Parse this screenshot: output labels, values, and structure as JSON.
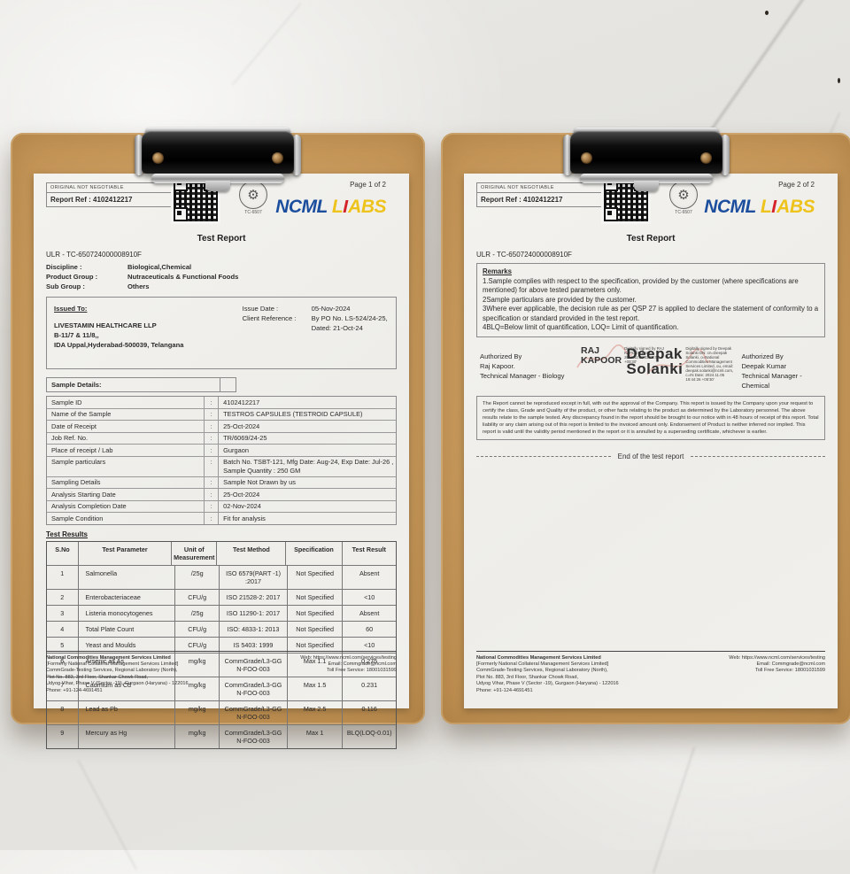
{
  "logo": {
    "ncml": "NCML",
    "labs_l": "L",
    "labs_rest": "ABS"
  },
  "colors": {
    "logo_blue": "#1c4e9e",
    "logo_yellow": "#eec41c",
    "logo_red": "#d4232a",
    "board_wood": "#c89a5c",
    "paper": "#f1f0ec"
  },
  "header": {
    "original": "ORIGINAL NOT NEGOTIABLE",
    "report_ref": "Report Ref : 4102412217",
    "seal_caption": "TC-6507",
    "title": "Test Report",
    "ulr": "ULR - TC-650724000008910F"
  },
  "page1": {
    "page_label": "Page 1 of 2",
    "meta": [
      {
        "label": "Discipline :",
        "value": "Biological,Chemical"
      },
      {
        "label": "Product Group :",
        "value": "Nutraceuticals & Functional Foods"
      },
      {
        "label": "Sub Group :",
        "value": "Others"
      }
    ],
    "issued_to_title": "Issued To:",
    "issued_to_line1": "LIVESTAMIN HEALTHCARE LLP",
    "issued_to_line2": "B-11/7 & 11/8,,",
    "issued_to_line3": "IDA Uppal,Hyderabad-500039, Telangana",
    "issue_date_label": "Issue Date :",
    "client_ref_label": "Client Reference :",
    "issue_date": "05-Nov-2024",
    "client_ref1": "By PO No. LS-524/24-25,",
    "client_ref2": "Dated: 21-Oct-24",
    "sample_details_label": "Sample Details:",
    "colon": ":",
    "sample_details": [
      {
        "label": "Sample ID",
        "value": "4102412217"
      },
      {
        "label": "Name of the Sample",
        "value": "TESTROS CAPSULES (TESTROID CAPSULE)"
      },
      {
        "label": "Date of Receipt",
        "value": "25-Oct-2024"
      },
      {
        "label": "Job Ref. No.",
        "value": "TR/6069/24-25"
      },
      {
        "label": "Place of receipt / Lab",
        "value": "Gurgaon"
      },
      {
        "label": "Sample particulars",
        "value": "Batch No. TSBT-121, Mfg Date: Aug-24, Exp Date: Jul-26 , Sample Quantity : 250 GM"
      },
      {
        "label": "Sampling Details",
        "value": "Sample Not Drawn by us"
      },
      {
        "label": "Analysis Starting Date",
        "value": "25-Oct-2024"
      },
      {
        "label": "Analysis Completion Date",
        "value": "02-Nov-2024"
      },
      {
        "label": "Sample Condition",
        "value": "Fit for analysis"
      }
    ],
    "test_results_label": "Test Results",
    "results_headers": [
      "S.No",
      "Test Parameter",
      "Unit of\nMeasurement",
      "Test Method",
      "Specification",
      "Test Result"
    ],
    "results": [
      [
        "1",
        "Salmonella",
        "/25g",
        "ISO 6579(PART -1)\n:2017",
        "Not Specified",
        "Absent"
      ],
      [
        "2",
        "Enterobacteriaceae",
        "CFU/g",
        "ISO 21528-2: 2017",
        "Not Specified",
        "<10"
      ],
      [
        "3",
        "Listeria monocytogenes",
        "/25g",
        "ISO 11290-1: 2017",
        "Not Specified",
        "Absent"
      ],
      [
        "4",
        "Total Plate Count",
        "CFU/g",
        "ISO: 4833-1: 2013",
        "Not Specified",
        "60"
      ],
      [
        "5",
        "Yeast and Moulds",
        "CFU/g",
        "IS 5403: 1999",
        "Not Specified",
        "<10"
      ],
      [
        "6",
        "Arsenic as As",
        "mg/kg",
        "CommGrade/L3-GG\nN-FOO-003",
        "Max 1.1",
        "0.275"
      ],
      [
        "7",
        "Cadmium as Cd",
        "mg/kg",
        "CommGrade/L3-GG\nN-FOO-003",
        "Max 1.5",
        "0.231"
      ],
      [
        "8",
        "Lead as Pb",
        "mg/kg",
        "CommGrade/L3-GG\nN-FOO-003",
        "Max 2.5",
        "0.116"
      ],
      [
        "9",
        "Mercury as Hg",
        "mg/kg",
        "CommGrade/L3-GG\nN-FOO-003",
        "Max 1",
        "BLQ(LOQ-0.01)"
      ]
    ]
  },
  "page2": {
    "page_label": "Page 2 of 2",
    "remarks_title": "Remarks",
    "remarks": [
      "1.Sample complies with respect to the specification, provided by the customer (where specifications are mentioned) for above tested parameters only.",
      "2Sample particulars are provided by the customer.",
      "3Where ever applicable, the decision rule as per QSP 27 is applied to declare the statement of conformity to a specification or standard provided in the test report.",
      "4BLQ=Below limit of quantification, LOQ= Limit of quantification."
    ],
    "sig_left_authorized": "Authorized By",
    "sig_left_name": "Raj Kapoor.",
    "sig_left_role": "Technical Manager - Biology",
    "sig_left_stamp_name": "RAJ\nKAPOOR",
    "sig_left_stamp_info": "Digitally signed by RAJ KAPOOR Date: 2024.11.05 22:01:58 +05'30'",
    "sig_center_stamp_name": "Deepak\nSolanki",
    "sig_center_stamp_info": "Digitally signed by Deepak Solanki DN: cn=Deepak Solanki, o=National Commodities Management Services Limited, ou, email: deepak.solanki@ncml.com, c=IN Date: 2024.11.05 19:44:26 +05'30'",
    "sig_right_authorized": "Authorized By",
    "sig_right_name": "Deepak Kumar",
    "sig_right_role": "Technical Manager - Chemical",
    "disclaimer": "The Report cannot be reproduced except in full, with out the approval of the Company. This report is issued by the Company upon your request to certify the class, Grade and Quality of the product, or other facts relating to the product as  determined by the Laboratory personnel. The above results relate to the sample tested. Any discrepancy found in the report should be brought to our notice with in 48 hours of receipt of this report.  Total liability or any claim arising out of this  report is limited to the invoiced amount only. Endorsement of Product is neither inferred nor implied. This report is valid until the validity period mentioned in the report or it is annulled by a superseding certificate, whichever is earlier.",
    "end_line": "End of the test report"
  },
  "footer": {
    "company": "National Commodities Management Services Limited",
    "lines": [
      "[Formerly National Collateral Management Services Limited]",
      "CommGrade-Testing Services, Regional Laboratory (North),",
      "Plot No. 883, 3rd Floor, Shankar Chowk Road,",
      "Udyog Vihar, Phase V (Sector -19), Gurgaon (Haryana) - 122016",
      "Phone: +91-124-4691451"
    ],
    "right": [
      "Web: https://www.ncml.com/services/testing",
      "Email: Commgrade@ncml.com",
      "Toll Free Service: 18001031599"
    ]
  }
}
